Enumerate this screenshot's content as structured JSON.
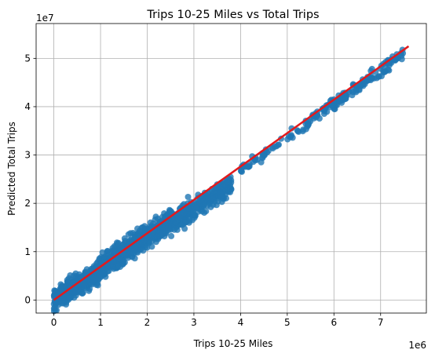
{
  "chart_data": {
    "type": "scatter",
    "title": "Trips 10-25 Miles vs Total Trips",
    "xlabel": "Trips 10-25 Miles",
    "ylabel": "Predicted Total Trips",
    "x_offset_text": "1e6",
    "y_offset_text": "1e7",
    "xlim": [
      -0.38,
      7.98
    ],
    "ylim": [
      -0.27,
      5.72
    ],
    "xticks": [
      0,
      1,
      2,
      3,
      4,
      5,
      6,
      7
    ],
    "yticks": [
      0,
      1,
      2,
      3,
      4,
      5
    ],
    "grid": true,
    "colors": {
      "points": "#1f77b4",
      "fit_line": "#e31a1c"
    },
    "fit_line": {
      "x": [
        0.0,
        7.6
      ],
      "y": [
        0.0,
        5.25
      ]
    },
    "scatter_clusters": [
      {
        "x_range": [
          0.0,
          1.0
        ],
        "center_slope": 0.62,
        "spread": 0.22,
        "count": 400
      },
      {
        "x_range": [
          1.0,
          2.5
        ],
        "center_slope": 0.66,
        "spread": 0.24,
        "count": 500
      },
      {
        "x_range": [
          2.5,
          3.8
        ],
        "center_slope": 0.63,
        "spread": 0.22,
        "count": 300
      },
      {
        "x_range": [
          4.0,
          5.5
        ],
        "center_slope": 0.67,
        "spread": 0.1,
        "count": 60
      },
      {
        "x_range": [
          5.5,
          7.5
        ],
        "center_slope": 0.68,
        "spread": 0.12,
        "count": 140
      }
    ]
  }
}
